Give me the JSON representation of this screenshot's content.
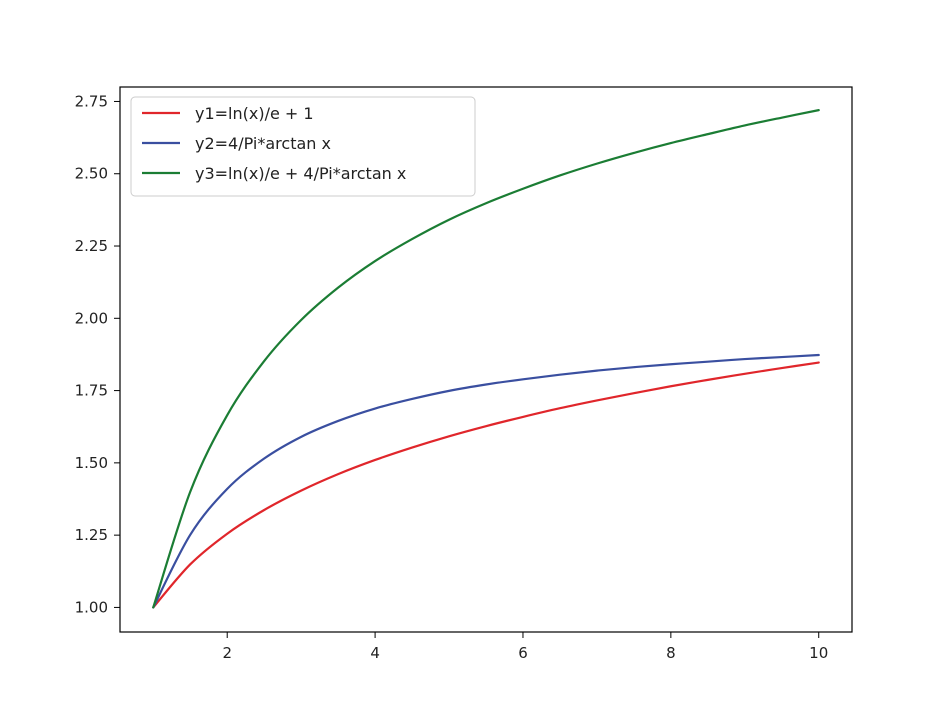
{
  "chart_data": {
    "type": "line",
    "title": "",
    "xlabel": "",
    "ylabel": "",
    "xlim": [
      0.55,
      10.45
    ],
    "ylim": [
      0.915,
      2.8
    ],
    "xticks": [
      2,
      4,
      6,
      8,
      10
    ],
    "xtick_labels": [
      "2",
      "4",
      "6",
      "8",
      "10"
    ],
    "yticks": [
      1.0,
      1.25,
      1.5,
      1.75,
      2.0,
      2.25,
      2.5,
      2.75
    ],
    "ytick_labels": [
      "1.00",
      "1.25",
      "1.50",
      "1.75",
      "2.00",
      "2.25",
      "2.50",
      "2.75"
    ],
    "grid": false,
    "legend_position": "upper-left",
    "x": [
      1,
      1.5,
      2,
      2.5,
      3,
      3.5,
      4,
      4.5,
      5,
      5.5,
      6,
      6.5,
      7,
      7.5,
      8,
      8.5,
      9,
      9.5,
      10
    ],
    "series": [
      {
        "name": "y1=ln(x)/e + 1",
        "color": "#e0262b",
        "values": [
          1.0,
          1.149,
          1.255,
          1.337,
          1.404,
          1.461,
          1.51,
          1.553,
          1.592,
          1.627,
          1.659,
          1.689,
          1.716,
          1.741,
          1.765,
          1.787,
          1.808,
          1.828,
          1.847
        ]
      },
      {
        "name": "y2=4/Pi*arctan x",
        "color": "#3a4fa0",
        "values": [
          1.0,
          1.251,
          1.41,
          1.515,
          1.59,
          1.645,
          1.688,
          1.721,
          1.749,
          1.771,
          1.789,
          1.805,
          1.819,
          1.831,
          1.841,
          1.85,
          1.859,
          1.866,
          1.873
        ]
      },
      {
        "name": "y3=ln(x)/e + 4/Pi*arctan x",
        "color": "#1b7d34",
        "values": [
          1.0,
          1.4,
          1.665,
          1.852,
          1.994,
          2.106,
          2.198,
          2.274,
          2.341,
          2.398,
          2.448,
          2.494,
          2.535,
          2.572,
          2.606,
          2.637,
          2.667,
          2.694,
          2.72
        ]
      }
    ]
  }
}
